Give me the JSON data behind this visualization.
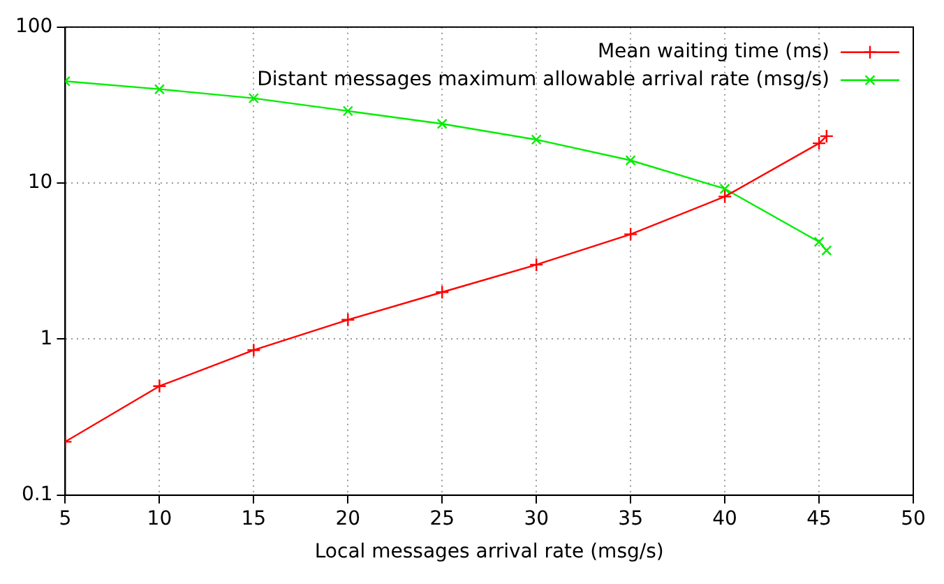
{
  "chart_data": {
    "type": "line",
    "xlabel": "Local messages arrival rate (msg/s)",
    "xlim": [
      5,
      50
    ],
    "xticks": [
      5,
      10,
      15,
      20,
      25,
      30,
      35,
      40,
      45,
      50
    ],
    "ylim": [
      0.1,
      100
    ],
    "yticks": [
      0.1,
      1,
      10,
      100
    ],
    "log": "y",
    "grid": true,
    "legend": "top right",
    "marker": "cross",
    "series": [
      {
        "name": "Mean waiting time (ms)",
        "color": "#ff0000",
        "x": [
          5,
          10,
          15,
          20,
          25,
          30,
          35,
          40,
          45,
          45.4
        ],
        "values": [
          0.22,
          0.5,
          0.85,
          1.33,
          2.0,
          3.0,
          4.7,
          8.2,
          18,
          20
        ]
      },
      {
        "name": "Distant messages maximum allowable arrival rate (msg/s)",
        "color": "#00ee00",
        "x": [
          5,
          10,
          15,
          20,
          25,
          30,
          35,
          40,
          45,
          45.4
        ],
        "values": [
          45,
          40,
          35,
          29,
          24,
          19,
          14,
          9.2,
          4.2,
          3.7
        ]
      }
    ]
  }
}
